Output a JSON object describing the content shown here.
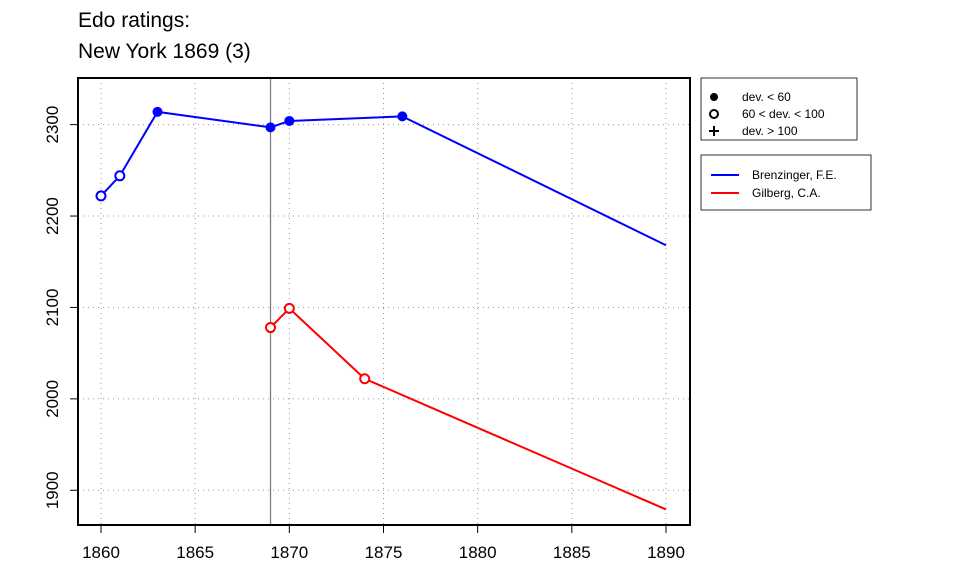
{
  "title_line1": "Edo ratings:",
  "title_line2": "New York 1869 (3)",
  "chart_data": {
    "type": "line",
    "xlim": [
      1860,
      1890
    ],
    "ylim": [
      1862,
      2351
    ],
    "x_ticks": [
      1860,
      1865,
      1870,
      1875,
      1880,
      1885,
      1890
    ],
    "y_ticks": [
      1900,
      2000,
      2100,
      2200,
      2300
    ],
    "grid": true,
    "reference_line_x": 1869,
    "symbol_legend": [
      {
        "label": "dev. < 60",
        "marker": "filled-circle"
      },
      {
        "label": "60 < dev. < 100",
        "marker": "open-circle"
      },
      {
        "label": "dev. > 100",
        "marker": "plus"
      }
    ],
    "series": [
      {
        "name": "Brenzinger, F.E.",
        "color": "#0000ff",
        "points": [
          {
            "x": 1860,
            "y": 2222,
            "marker": "open-circle"
          },
          {
            "x": 1861,
            "y": 2244,
            "marker": "open-circle"
          },
          {
            "x": 1863,
            "y": 2314,
            "marker": "filled-circle"
          },
          {
            "x": 1869,
            "y": 2297,
            "marker": "filled-circle"
          },
          {
            "x": 1870,
            "y": 2304,
            "marker": "filled-circle"
          },
          {
            "x": 1876,
            "y": 2309,
            "marker": "filled-circle"
          },
          {
            "x": 1890,
            "y": 2168,
            "marker": "none"
          }
        ]
      },
      {
        "name": "Gilberg, C.A.",
        "color": "#ff0000",
        "points": [
          {
            "x": 1869,
            "y": 2078,
            "marker": "open-circle"
          },
          {
            "x": 1870,
            "y": 2099,
            "marker": "open-circle"
          },
          {
            "x": 1874,
            "y": 2022,
            "marker": "open-circle"
          },
          {
            "x": 1890,
            "y": 1879,
            "marker": "none"
          }
        ]
      }
    ]
  }
}
